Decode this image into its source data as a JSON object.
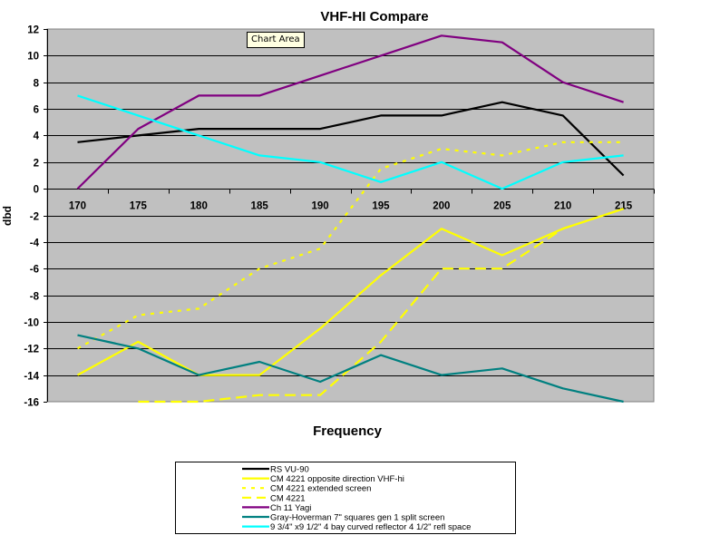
{
  "tooltip": "Chart Area",
  "chart_data": {
    "type": "line",
    "title": "VHF-HI Compare",
    "xlabel": "Frequency",
    "ylabel": "dbd",
    "categories": [
      "170",
      "175",
      "180",
      "185",
      "190",
      "195",
      "200",
      "205",
      "210",
      "215"
    ],
    "ylim": [
      -16,
      12
    ],
    "yticks": [
      12,
      10,
      8,
      6,
      4,
      2,
      0,
      -2,
      -4,
      -6,
      -8,
      -10,
      -12,
      -14,
      -16
    ],
    "ytick_labels": [
      "12",
      "10",
      "8",
      "6",
      "4",
      "2",
      "0",
      "-2",
      "-4",
      "-6",
      "-8",
      "-10",
      "-12",
      "-14",
      "-16"
    ],
    "grid": true,
    "legend_position": "bottom",
    "series": [
      {
        "name": "RS VU-90",
        "color": "#000000",
        "dash": "solid",
        "values": [
          3.5,
          4,
          4.5,
          4.5,
          4.5,
          5.5,
          5.5,
          6.5,
          5.5,
          1
        ]
      },
      {
        "name": "CM 4221 opposite direction VHF-hi",
        "color": "#ffff00",
        "dash": "solid",
        "values": [
          -14,
          -11.5,
          -14,
          -14,
          -10.5,
          -6.5,
          -3,
          -5,
          -3,
          -1.5
        ]
      },
      {
        "name": "CM 4221 extended screen",
        "color": "#ffff00",
        "dash": "dotted",
        "values": [
          -12,
          -9.5,
          -9,
          -6,
          -4.5,
          1.5,
          3,
          2.5,
          3.5,
          3.5
        ]
      },
      {
        "name": "CM 4221",
        "color": "#ffff00",
        "dash": "dashed",
        "values": [
          null,
          -16,
          -16,
          -15.5,
          -15.5,
          -11.5,
          -6,
          -6,
          -3,
          -1.5
        ]
      },
      {
        "name": "Ch 11 Yagi",
        "color": "#800080",
        "dash": "solid",
        "values": [
          0,
          4.5,
          7,
          7,
          8.5,
          10,
          11.5,
          11,
          8,
          6.5
        ]
      },
      {
        "name": "Gray-Hoverman 7\" squares gen 1 split screen",
        "color": "#008080",
        "dash": "solid",
        "values": [
          -11,
          -12,
          -14,
          -13,
          -14.5,
          -12.5,
          -14,
          -13.5,
          -15,
          -16
        ]
      },
      {
        "name": "9 3/4\" x9 1/2\" 4 bay curved reflector 4 1/2\" refl space",
        "color": "#00ffff",
        "dash": "solid",
        "values": [
          7,
          5.5,
          4,
          2.5,
          2,
          0.5,
          2,
          0,
          2,
          2.5
        ]
      }
    ],
    "colors": {
      "plot_background": "#c0c0c0",
      "gridline": "#000000",
      "frame": "#808080"
    }
  }
}
